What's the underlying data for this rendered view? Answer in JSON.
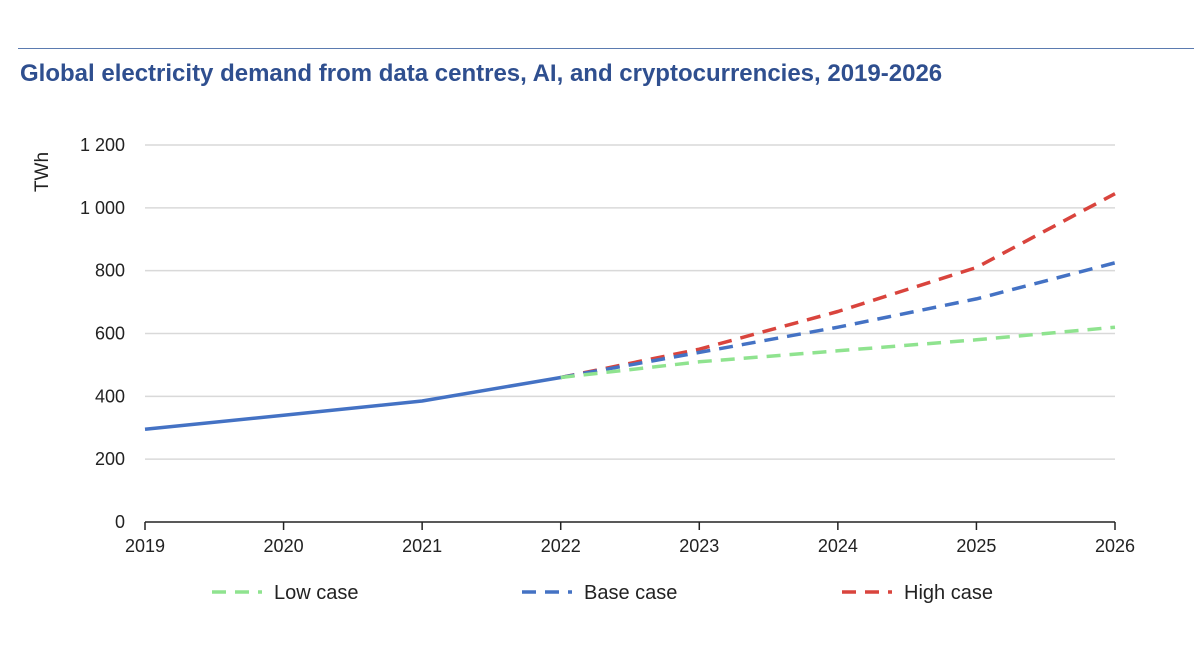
{
  "chart_data": {
    "type": "line",
    "title": "Global electricity demand from data centres, AI, and cryptocurrencies, 2019-2026",
    "xlabel": "",
    "ylabel": "TWh",
    "x": [
      "2019",
      "2020",
      "2021",
      "2022",
      "2023",
      "2024",
      "2025",
      "2026"
    ],
    "xlim": [
      2019,
      2026
    ],
    "ylim": [
      0,
      1200
    ],
    "yticks": [
      0,
      200,
      400,
      600,
      800,
      1000,
      1200
    ],
    "ytick_labels": [
      "0",
      "200",
      "400",
      "600",
      "800",
      "1 000",
      "1 200"
    ],
    "grid": true,
    "legend_position": "bottom",
    "series": [
      {
        "style": "solid",
        "color": "#4472c4",
        "points": [
          [
            2019,
            295
          ],
          [
            2020,
            340
          ],
          [
            2021,
            385
          ],
          [
            2022,
            460
          ]
        ]
      },
      {
        "name": "Low case",
        "style": "dashed",
        "color": "#8fe38f",
        "points": [
          [
            2022,
            460
          ],
          [
            2023,
            510
          ],
          [
            2024,
            545
          ],
          [
            2025,
            580
          ],
          [
            2026,
            620
          ]
        ]
      },
      {
        "name": "Base case",
        "style": "dashed",
        "color": "#4472c4",
        "points": [
          [
            2022,
            460
          ],
          [
            2023,
            540
          ],
          [
            2024,
            620
          ],
          [
            2025,
            710
          ],
          [
            2026,
            825
          ]
        ]
      },
      {
        "name": "High case",
        "style": "dashed",
        "color": "#d9443d",
        "points": [
          [
            2022,
            460
          ],
          [
            2023,
            550
          ],
          [
            2024,
            670
          ],
          [
            2025,
            810
          ],
          [
            2026,
            1045
          ]
        ]
      }
    ]
  }
}
